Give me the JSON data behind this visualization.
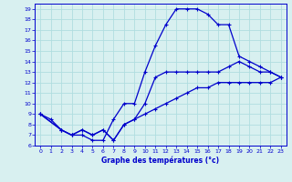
{
  "title": "Graphe des températures (°c)",
  "bg_color": "#d8f0f0",
  "line_color": "#0000cc",
  "grid_color": "#b0dde0",
  "xlim": [
    -0.5,
    23.5
  ],
  "ylim": [
    6,
    19.5
  ],
  "xticks": [
    0,
    1,
    2,
    3,
    4,
    5,
    6,
    7,
    8,
    9,
    10,
    11,
    12,
    13,
    14,
    15,
    16,
    17,
    18,
    19,
    20,
    21,
    22,
    23
  ],
  "yticks": [
    6,
    7,
    8,
    9,
    10,
    11,
    12,
    13,
    14,
    15,
    16,
    17,
    18,
    19
  ],
  "line1_x": [
    0,
    1,
    2,
    3,
    4,
    5,
    6,
    7,
    8,
    9,
    10,
    11,
    12,
    13,
    14,
    15,
    16,
    17,
    18,
    19,
    20,
    21,
    22,
    23
  ],
  "line1_y": [
    9,
    8.5,
    7.5,
    7,
    7,
    6.5,
    6.5,
    8.5,
    10,
    10,
    13,
    15.5,
    17.5,
    19,
    19,
    19,
    18.5,
    17.5,
    17.5,
    14.5,
    14,
    13.5,
    13,
    12.5
  ],
  "line2_x": [
    0,
    2,
    3,
    4,
    5,
    6,
    7,
    8,
    9,
    10,
    11,
    12,
    13,
    14,
    15,
    16,
    17,
    18,
    19,
    20,
    21,
    22,
    23
  ],
  "line2_y": [
    9,
    7.5,
    7,
    7.5,
    7,
    7.5,
    6.5,
    8,
    8.5,
    10,
    12.5,
    13,
    13,
    13,
    13,
    13,
    13,
    13.5,
    14,
    13.5,
    13,
    13,
    12.5
  ],
  "line3_x": [
    0,
    2,
    3,
    4,
    5,
    6,
    7,
    8,
    9,
    10,
    11,
    12,
    13,
    14,
    15,
    16,
    17,
    18,
    19,
    20,
    21,
    22,
    23
  ],
  "line3_y": [
    9,
    7.5,
    7,
    7.5,
    7,
    7.5,
    6.5,
    8,
    8.5,
    9,
    9.5,
    10,
    10.5,
    11,
    11.5,
    11.5,
    12,
    12,
    12,
    12,
    12,
    12,
    12.5
  ]
}
